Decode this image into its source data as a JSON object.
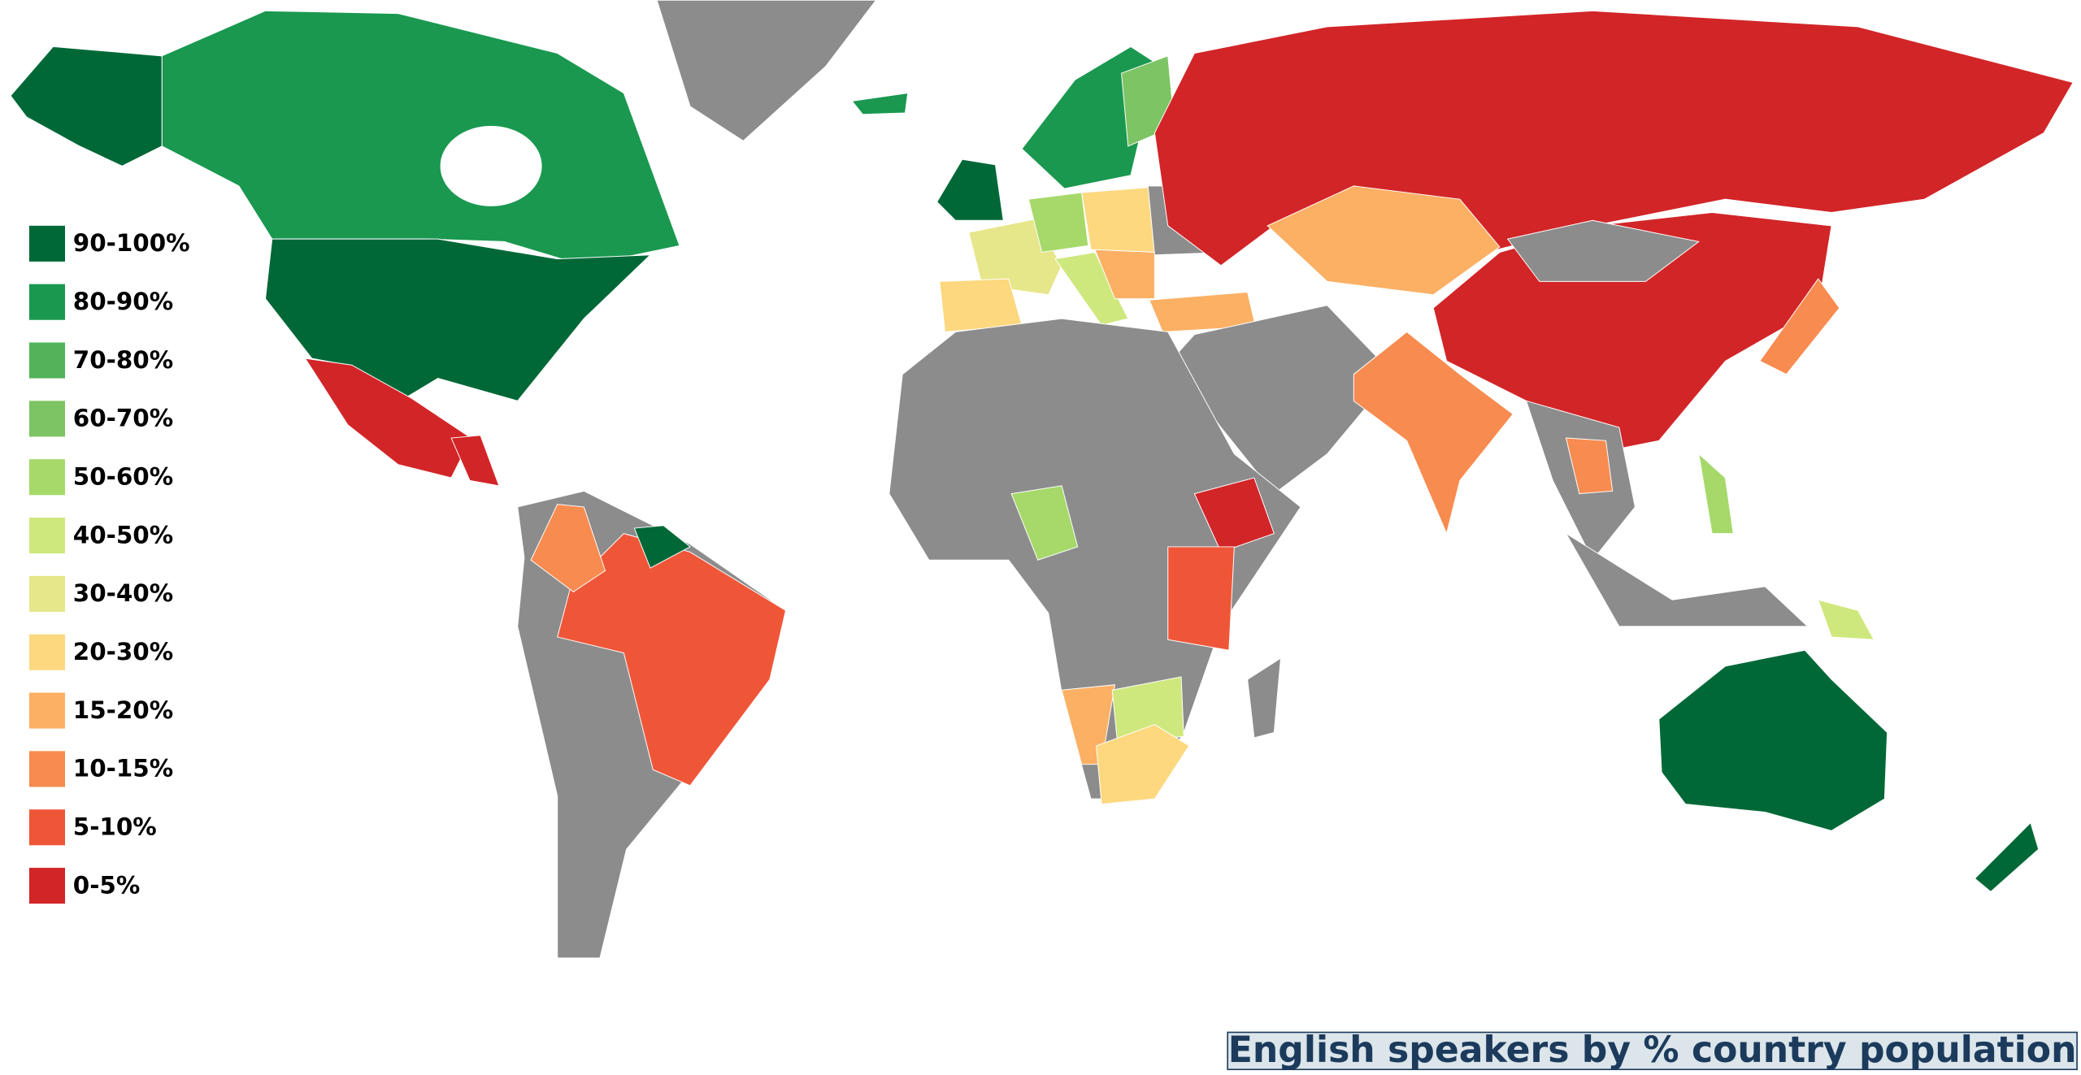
{
  "title": "English speakers by % country population",
  "legend": {
    "items": [
      {
        "label": "90-100%",
        "color": "#006837"
      },
      {
        "label": "80-90%",
        "color": "#1a9850"
      },
      {
        "label": "70-80%",
        "color": "#52b35b"
      },
      {
        "label": "60-70%",
        "color": "#7dc464"
      },
      {
        "label": "50-60%",
        "color": "#a6d96a"
      },
      {
        "label": "40-50%",
        "color": "#cfe87e"
      },
      {
        "label": "30-40%",
        "color": "#e6e68a"
      },
      {
        "label": "20-30%",
        "color": "#fdd87f"
      },
      {
        "label": "15-20%",
        "color": "#fbb064"
      },
      {
        "label": "10-15%",
        "color": "#f88b4f"
      },
      {
        "label": "5-10%",
        "color": "#ef5638"
      },
      {
        "label": "0-5%",
        "color": "#d22528"
      }
    ]
  }
}
